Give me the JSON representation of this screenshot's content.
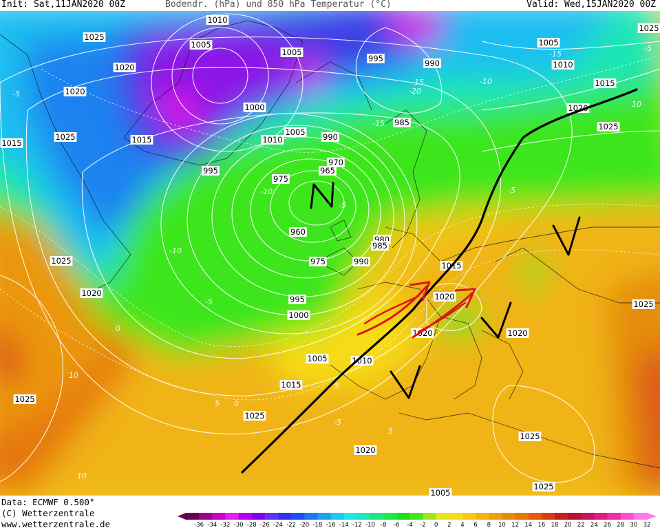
{
  "header": {
    "init": "Init: Sat,11JAN2020 00Z",
    "title": "Bodendr. (hPa) und 850 hPa Temperatur (°C)",
    "valid": "Valid: Wed,15JAN2020 00Z"
  },
  "footer": {
    "data_line": "Data: ECMWF  0.500°",
    "copyright": "(C) Wetterzentrale",
    "url": "www.wetterzentrale.de"
  },
  "colorbar": {
    "ticks": [
      "-36",
      "-34",
      "-32",
      "-30",
      "-28",
      "-26",
      "-24",
      "-22",
      "-20",
      "-18",
      "-16",
      "-14",
      "-12",
      "-10",
      "-8",
      "-6",
      "-4",
      "-2",
      "0",
      "2",
      "4",
      "6",
      "8",
      "10",
      "12",
      "14",
      "16",
      "18",
      "20",
      "22",
      "24",
      "26",
      "28",
      "30",
      "32"
    ],
    "colors": [
      "#6a0050",
      "#9a0090",
      "#c800c8",
      "#e61ee6",
      "#b400e6",
      "#8200e6",
      "#6432e6",
      "#3232e6",
      "#1e50f0",
      "#1e78f0",
      "#1ea0f0",
      "#1ec8f0",
      "#1ee6e6",
      "#1ee6b4",
      "#1ee682",
      "#1ee650",
      "#1edc1e",
      "#46e61e",
      "#a0e61e",
      "#e6e61e",
      "#fadc14",
      "#fac814",
      "#f0b414",
      "#eba00f",
      "#e68c0a",
      "#e6780a",
      "#e65a0a",
      "#dc3c14",
      "#c81e1e",
      "#b41432",
      "#c8145a",
      "#dc1e82",
      "#f02daa",
      "#fa50d2",
      "#ff78f0"
    ]
  },
  "map": {
    "isobar_labels": [
      {
        "text": "1010"
      },
      {
        "text": "1025"
      },
      {
        "text": "1005"
      },
      {
        "text": "1005"
      },
      {
        "text": "995"
      },
      {
        "text": "990"
      },
      {
        "text": "1005"
      },
      {
        "text": "1010"
      },
      {
        "text": "1020"
      },
      {
        "text": "1020"
      },
      {
        "text": "1000"
      },
      {
        "text": "1015"
      },
      {
        "text": "1020"
      },
      {
        "text": "1015"
      },
      {
        "text": "1025"
      },
      {
        "text": "1015"
      },
      {
        "text": "1005"
      },
      {
        "text": "985"
      },
      {
        "text": "990"
      },
      {
        "text": "1025"
      },
      {
        "text": "1010"
      },
      {
        "text": "995"
      },
      {
        "text": "970"
      },
      {
        "text": "965"
      },
      {
        "text": "975"
      },
      {
        "text": "960"
      },
      {
        "text": "980"
      },
      {
        "text": "985"
      },
      {
        "text": "990"
      },
      {
        "text": "975"
      },
      {
        "text": "1015"
      },
      {
        "text": "995"
      },
      {
        "text": "1020"
      },
      {
        "text": "1000"
      },
      {
        "text": "1025"
      },
      {
        "text": "1020"
      },
      {
        "text": "1025"
      },
      {
        "text": "1020"
      },
      {
        "text": "1005"
      },
      {
        "text": "1020"
      },
      {
        "text": "1010"
      },
      {
        "text": "1015"
      },
      {
        "text": "1025"
      },
      {
        "text": "1025"
      },
      {
        "text": "1020"
      },
      {
        "text": "1025"
      },
      {
        "text": "1005"
      },
      {
        "text": "1025"
      },
      {
        "text": "1025"
      }
    ],
    "temp_labels": [
      "-15",
      "-20",
      "-15",
      "-10",
      "-15",
      "-5",
      "-10",
      "-5",
      "-5",
      "-10",
      "-5",
      "0",
      "10",
      "-5",
      "5",
      "5",
      "0",
      "5",
      "10",
      "10",
      "-5"
    ],
    "annotations": {
      "low_symbol": "N",
      "high_symbols": [
        "V",
        "V",
        "V"
      ]
    }
  }
}
